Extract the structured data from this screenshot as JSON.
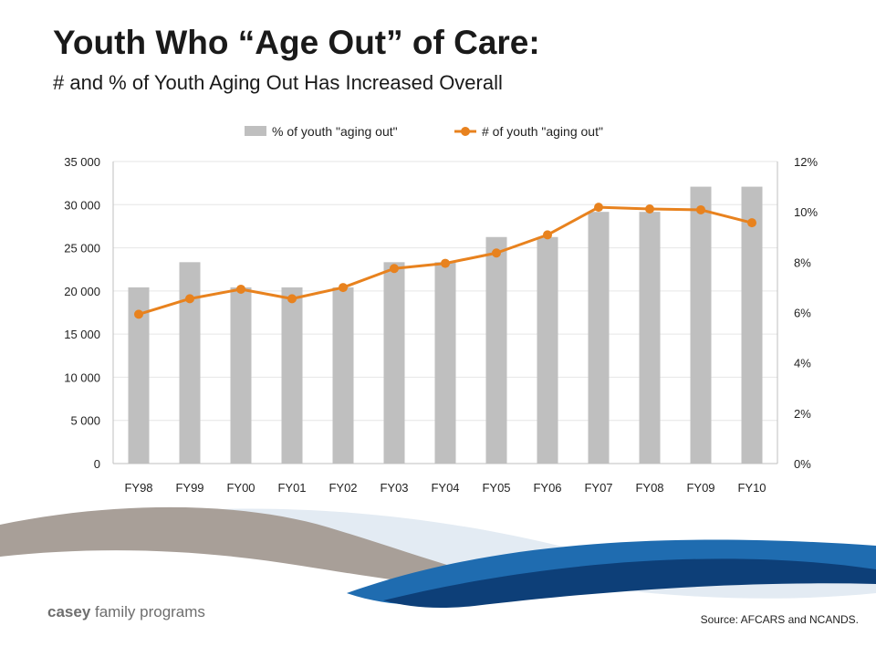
{
  "title": "Youth Who “Age Out” of Care:",
  "subtitle": "# and % of Youth Aging Out Has Increased Overall",
  "source": "Source: AFCARS and NCANDS.",
  "logo": {
    "bold": "casey",
    "rest": " family programs"
  },
  "colors": {
    "bar": "#bfbfbf",
    "line": "#e8821e",
    "grid": "#e6e6e6",
    "axis_text": "#222222",
    "wave_gray": "#a89f98",
    "wave_blue_dark": "#0d3f78",
    "wave_blue_mid": "#1f6cb0",
    "wave_blue_light": "#d9e6f2"
  },
  "chart_data": {
    "type": "bar",
    "categories": [
      "FY98",
      "FY99",
      "FY00",
      "FY01",
      "FY02",
      "FY03",
      "FY04",
      "FY05",
      "FY06",
      "FY07",
      "FY08",
      "FY09",
      "FY10"
    ],
    "series": [
      {
        "name": "% of youth \"aging out\"",
        "kind": "bar",
        "axis": "right",
        "values": [
          0.07,
          0.08,
          0.07,
          0.07,
          0.07,
          0.08,
          0.08,
          0.09,
          0.09,
          0.1,
          0.1,
          0.11,
          0.11
        ]
      },
      {
        "name": "# of youth \"aging out\"",
        "kind": "line",
        "axis": "left",
        "values": [
          17300,
          19100,
          20200,
          19100,
          20400,
          22600,
          23200,
          24400,
          26500,
          29700,
          29500,
          29400,
          27900
        ]
      }
    ],
    "y_left": {
      "lim": [
        0,
        35000
      ],
      "ticks": [
        0,
        5000,
        10000,
        15000,
        20000,
        25000,
        30000,
        35000
      ],
      "tick_labels": [
        "0",
        "5 000",
        "10 000",
        "15 000",
        "20 000",
        "25 000",
        "30 000",
        "35 000"
      ]
    },
    "y_right": {
      "lim": [
        0,
        0.12
      ],
      "ticks": [
        0,
        0.02,
        0.04,
        0.06,
        0.08,
        0.1,
        0.12
      ],
      "tick_labels": [
        "0%",
        "2%",
        "4%",
        "6%",
        "8%",
        "10%",
        "12%"
      ]
    },
    "grid": true,
    "legend_position": "top-center"
  }
}
